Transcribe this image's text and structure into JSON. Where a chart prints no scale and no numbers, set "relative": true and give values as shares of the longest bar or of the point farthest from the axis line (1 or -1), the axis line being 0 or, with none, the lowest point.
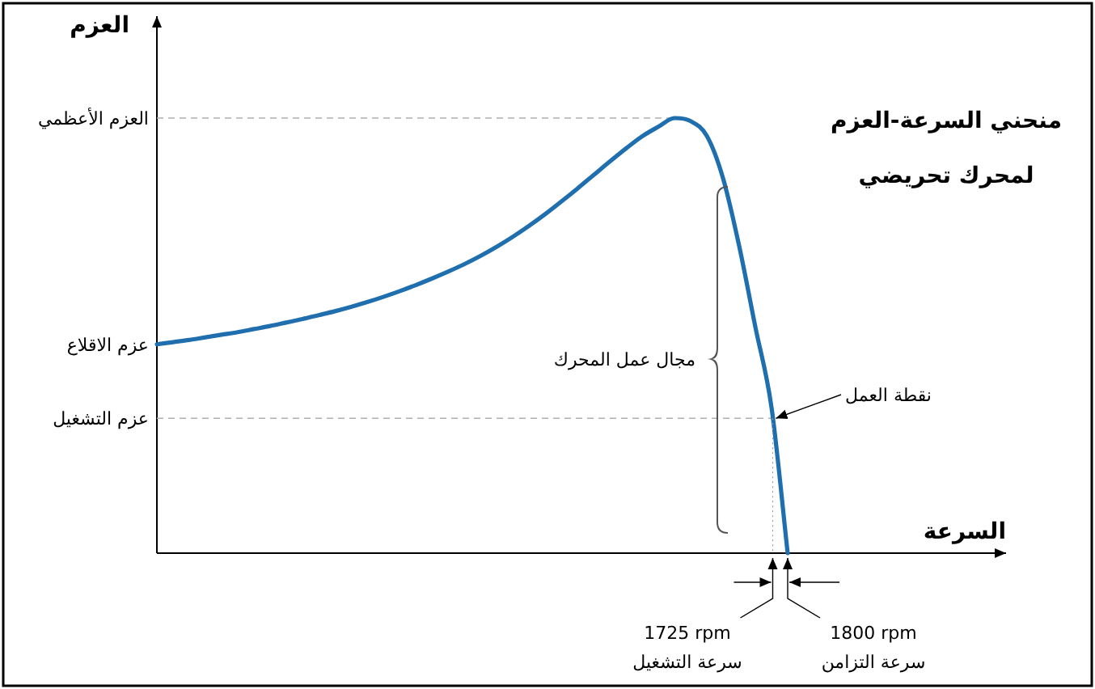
{
  "chart_data": {
    "type": "line",
    "title": "منحني السرعة-العزم لمحرك تحريضي",
    "ylabel": "العزم",
    "relative": true,
    "categories": [
      null,
      null,
      null,
      null,
      null,
      null,
      null,
      null,
      null,
      null,
      null,
      null,
      null,
      null,
      null,
      null,
      null,
      null,
      null,
      null,
      null,
      null,
      null,
      null,
      null,
      null,
      null,
      null,
      null,
      null,
      null,
      null,
      null,
      null,
      null,
      null,
      null,
      null,
      null,
      null
    ],
    "series": [
      {
        "color": "#1f6fae",
        "values": [
          0.48,
          0.485,
          0.49,
          0.496,
          0.502,
          0.508,
          0.515,
          0.522,
          0.53,
          0.538,
          0.547,
          0.556,
          0.566,
          0.577,
          0.589,
          0.602,
          0.616,
          0.631,
          0.647,
          0.664,
          0.683,
          0.704,
          0.727,
          0.752,
          0.779,
          0.808,
          0.838,
          0.869,
          0.9,
          0.93,
          0.958,
          0.98,
          1.0,
          0.993,
          0.959,
          0.862,
          0.706,
          0.52,
          0.335,
          0
        ]
      }
    ],
    "ref_lines": [
      {
        "axis": "y",
        "value": 1.0,
        "label": "العزم الأعظمي",
        "line_style": "dashed",
        "color": "#b0b0b0"
      },
      {
        "axis": "y",
        "value": 0.31,
        "label": "عزم التشغيل",
        "line_style": "dashed",
        "color": "#b0b0b0"
      }
    ],
    "annotations": [
      "عزم الاقلاع",
      "مجال عمل المحرك",
      "نقطة العمل",
      "1725 rpm",
      "سرعة التشغيل",
      "1800 rpm",
      "سرعة التزامن",
      "السرعة"
    ]
  }
}
